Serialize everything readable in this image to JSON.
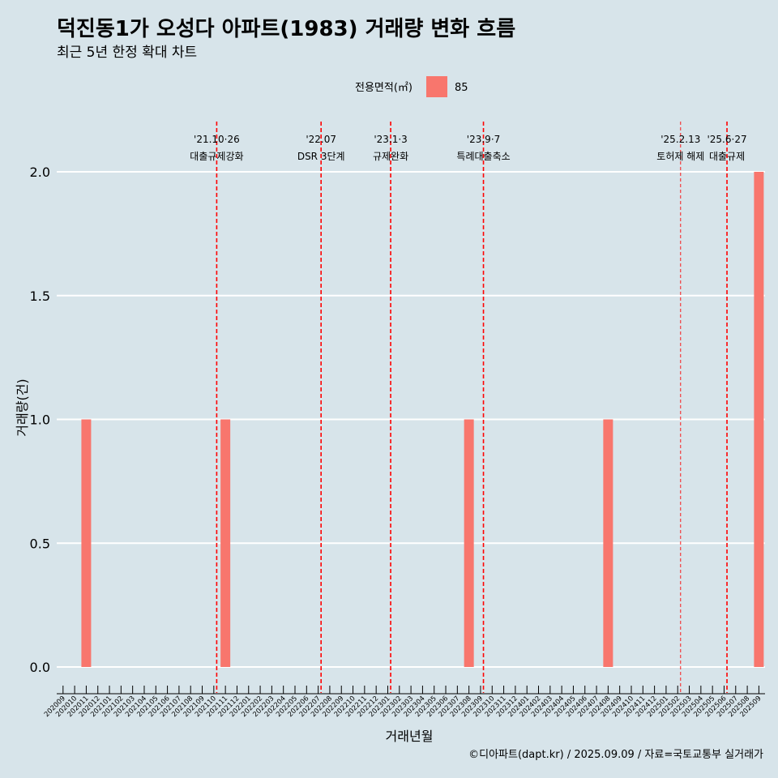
{
  "chart_data": {
    "type": "bar",
    "title": "덕진동1가 오성다 아파트(1983) 거래량 변화 흐름",
    "subtitle": "최근 5년 한정 확대 차트",
    "xlabel": "거래년월",
    "ylabel": "거래량(건)",
    "ylim": [
      0,
      2.0
    ],
    "yticks": [
      "0.0",
      "0.5",
      "1.0",
      "1.5",
      "2.0"
    ],
    "ytick_values": [
      0,
      0.5,
      1.0,
      1.5,
      2.0
    ],
    "grid": true,
    "legend": {
      "title": "전용면적(㎡)",
      "placement": "top-center",
      "entries": [
        {
          "label": "85",
          "color": "#f8766d"
        }
      ]
    },
    "categories": [
      "202009",
      "202010",
      "202011",
      "202012",
      "202101",
      "202102",
      "202103",
      "202104",
      "202105",
      "202106",
      "202107",
      "202108",
      "202109",
      "202110",
      "202111",
      "202112",
      "202201",
      "202202",
      "202203",
      "202204",
      "202205",
      "202206",
      "202207",
      "202208",
      "202209",
      "202210",
      "202211",
      "202212",
      "202301",
      "202302",
      "202303",
      "202304",
      "202305",
      "202306",
      "202307",
      "202308",
      "202309",
      "202310",
      "202311",
      "202312",
      "202401",
      "202402",
      "202403",
      "202404",
      "202405",
      "202406",
      "202407",
      "202408",
      "202409",
      "202410",
      "202411",
      "202412",
      "202501",
      "202502",
      "202503",
      "202504",
      "202505",
      "202506",
      "202507",
      "202508",
      "202509"
    ],
    "series": [
      {
        "name": "85",
        "color": "#f8766d",
        "values": [
          0,
          0,
          1,
          0,
          0,
          0,
          0,
          0,
          0,
          0,
          0,
          0,
          0,
          0,
          1,
          0,
          0,
          0,
          0,
          0,
          0,
          0,
          0,
          0,
          0,
          0,
          0,
          0,
          0,
          0,
          0,
          0,
          0,
          0,
          0,
          1,
          0,
          0,
          0,
          0,
          0,
          0,
          0,
          0,
          0,
          0,
          0,
          1,
          0,
          0,
          0,
          0,
          0,
          0,
          0,
          0,
          0,
          0,
          0,
          0,
          2
        ]
      }
    ],
    "events": [
      {
        "date": "'21.10·26",
        "label": "대출규제강화",
        "position": 13.25,
        "style": "bold"
      },
      {
        "date": "'22.07",
        "label": "DSR 3단계",
        "position": 22.25,
        "style": "bold"
      },
      {
        "date": "'23.1·3",
        "label": "규제완화",
        "position": 28.25,
        "style": "bold"
      },
      {
        "date": "'23.9·7",
        "label": "특례대출축소",
        "position": 36.25,
        "style": "bold"
      },
      {
        "date": "'25.2.13",
        "label": "토허제 해제",
        "position": 53.25,
        "style": "thin"
      },
      {
        "date": "'25.6·27",
        "label": "대출규제",
        "position": 57.25,
        "style": "bold"
      }
    ]
  },
  "caption": "©디아파트(dapt.kr) / 2025.09.09 / 자료=국토교통부 실거래가",
  "colors": {
    "background": "#d7e4ea",
    "bar": "#f8766d",
    "event_line": "#ff0000",
    "grid": "#ffffff"
  }
}
